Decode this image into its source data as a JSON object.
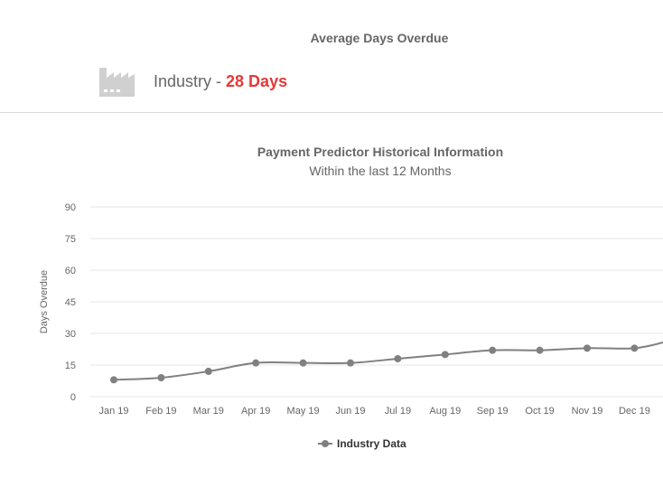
{
  "summary": {
    "title": "Average Days Overdue",
    "industry_label": "Industry",
    "separator": "-",
    "industry_value": "28 Days",
    "icon": "factory-icon"
  },
  "colors": {
    "accent": "#e53935",
    "series": "#808080",
    "text": "#666666",
    "grid": "#e6e6e6"
  },
  "chart_data": {
    "type": "line",
    "title": "Payment Predictor Historical Information",
    "subtitle": "Within the last 12 Months",
    "xlabel": "",
    "ylabel": "Days Overdue",
    "ylim": [
      0,
      90
    ],
    "yticks": [
      0,
      15,
      30,
      45,
      60,
      75,
      90
    ],
    "grid": true,
    "legend_position": "bottom-center",
    "categories": [
      "Jan 19",
      "Feb 19",
      "Mar 19",
      "Apr 19",
      "May 19",
      "Jun 19",
      "Jul 19",
      "Aug 19",
      "Sep 19",
      "Oct 19",
      "Nov 19",
      "Dec 19"
    ],
    "series": [
      {
        "name": "Industry Data",
        "values": [
          8,
          9,
          12,
          16,
          16,
          16,
          18,
          20,
          22,
          22,
          23,
          23
        ],
        "trailing_value": 26
      }
    ]
  }
}
